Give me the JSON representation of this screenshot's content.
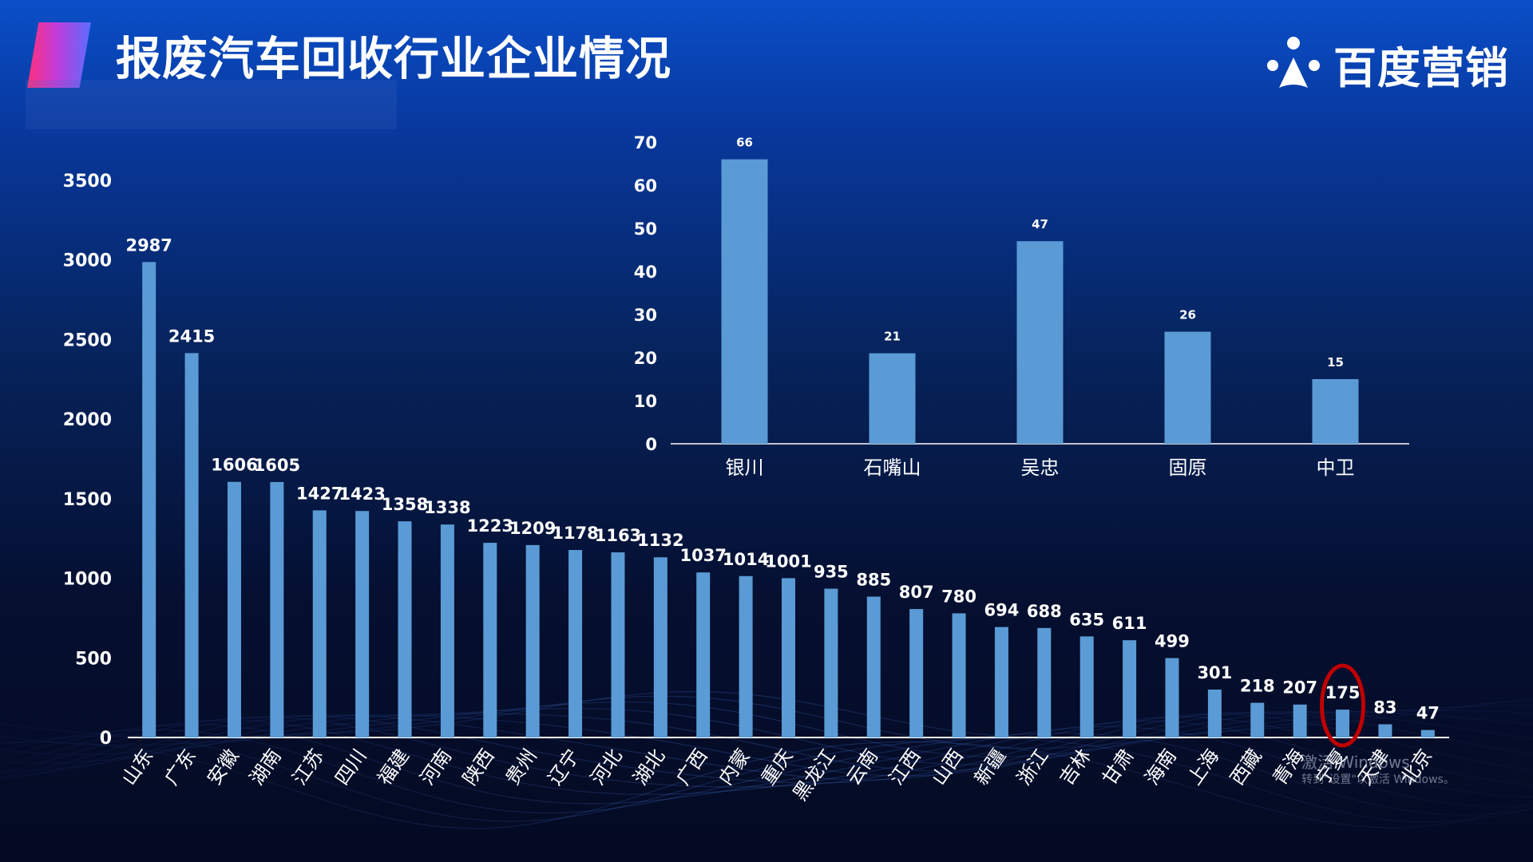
{
  "title": "报废汽车回收行业企业情况",
  "logo": {
    "text": "百度营销",
    "icon": "baidu-paw-icon"
  },
  "watermark": {
    "line1": "激活 Windows",
    "line2": "转到\"设置\"以激活 Windows。"
  },
  "colors": {
    "bar": "#5b9bd5",
    "highlight_ring": "#c00000",
    "axis": "#ffffff"
  },
  "chart_data": [
    {
      "type": "bar",
      "categories": [
        "山东",
        "广东",
        "安徽",
        "湖南",
        "江苏",
        "四川",
        "福建",
        "河南",
        "陕西",
        "贵州",
        "辽宁",
        "河北",
        "湖北",
        "广西",
        "内蒙",
        "重庆",
        "黑龙江",
        "云南",
        "江西",
        "山西",
        "新疆",
        "浙江",
        "吉林",
        "甘肃",
        "海南",
        "上海",
        "西藏",
        "青海",
        "宁夏",
        "天津",
        "北京"
      ],
      "values": [
        2987,
        2415,
        1606,
        1605,
        1427,
        1423,
        1358,
        1338,
        1223,
        1209,
        1178,
        1163,
        1132,
        1037,
        1014,
        1001,
        935,
        885,
        807,
        780,
        694,
        688,
        635,
        611,
        499,
        301,
        218,
        207,
        175,
        83,
        47
      ],
      "ylim": [
        0,
        3500
      ],
      "yticks": [
        0,
        500,
        1000,
        1500,
        2000,
        2500,
        3000,
        3500
      ],
      "highlight": "宁夏",
      "grid": false,
      "legend": "none"
    },
    {
      "type": "bar",
      "categories": [
        "银川",
        "石嘴山",
        "吴忠",
        "固原",
        "中卫"
      ],
      "values": [
        66,
        21,
        47,
        26,
        15
      ],
      "ylim": [
        0,
        70
      ],
      "yticks": [
        0,
        10,
        20,
        30,
        40,
        50,
        60,
        70
      ],
      "grid": false,
      "legend": "none"
    }
  ]
}
